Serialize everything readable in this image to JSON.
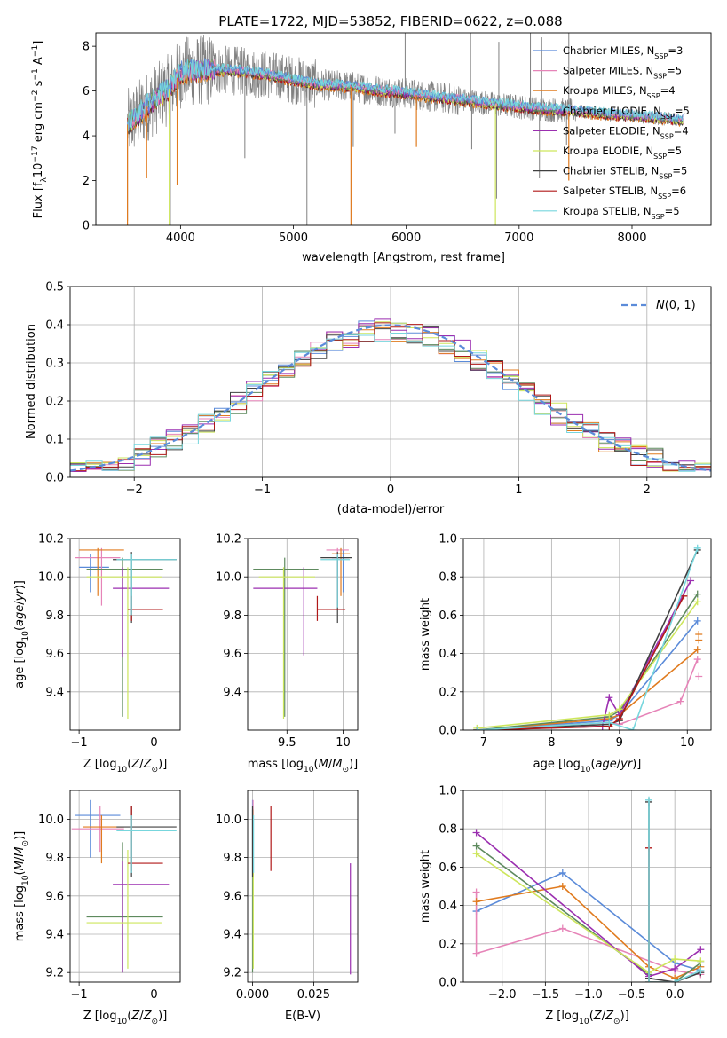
{
  "figure_title": "PLATE=1722, MJD=53852, FIBERID=0622, z=0.088",
  "colors": {
    "chabrier_miles": "#5b8bd9",
    "salpeter_miles": "#e684b8",
    "kroupa_miles": "#e07b1f",
    "chabrier_elodie": "#5e8a5e",
    "salpeter_elodie": "#9b2fb0",
    "kroupa_elodie": "#cde65c",
    "chabrier_stelib": "#404040",
    "salpeter_stelib": "#b01818",
    "kroupa_stelib": "#77d6dd",
    "data_gray": "#808080",
    "normal_dash": "#5b8bd9"
  },
  "chart_data": [
    {
      "id": "spectrum",
      "type": "line",
      "xlabel": "wavelength [Angstrom, rest frame]",
      "ylabel": "Flux [f_λ 10^-17 erg cm^-2 s^-1 A^-1]",
      "xlim": [
        3250,
        8700
      ],
      "ylim": [
        0,
        8.6
      ],
      "xticks": [
        4000,
        5000,
        6000,
        7000,
        8000
      ],
      "yticks": [
        0,
        2,
        4,
        6,
        8
      ],
      "grid": false,
      "legend_position": "top-right",
      "legend": [
        {
          "key": "chabrier_miles",
          "name": "Chabrier MILES",
          "nssp": "N",
          "sub": "SSP",
          "val": "=3"
        },
        {
          "key": "salpeter_miles",
          "name": "Salpeter MILES",
          "nssp": "N",
          "sub": "SSP",
          "val": "=5"
        },
        {
          "key": "kroupa_miles",
          "name": "Kroupa MILES",
          "nssp": "N",
          "sub": "SSP",
          "val": "=4"
        },
        {
          "key": "chabrier_elodie",
          "name": "Chabrier ELODIE",
          "nssp": "N",
          "sub": "SSP",
          "val": "=5"
        },
        {
          "key": "salpeter_elodie",
          "name": "Salpeter ELODIE",
          "nssp": "N",
          "sub": "SSP",
          "val": "=4"
        },
        {
          "key": "kroupa_elodie",
          "name": "Kroupa ELODIE",
          "nssp": "N",
          "sub": "SSP",
          "val": "=5"
        },
        {
          "key": "chabrier_stelib",
          "name": "Chabrier STELIB",
          "nssp": "N",
          "sub": "SSP",
          "val": "=5"
        },
        {
          "key": "salpeter_stelib",
          "name": "Salpeter STELIB",
          "nssp": "N",
          "sub": "SSP",
          "val": "=6"
        },
        {
          "key": "kroupa_stelib",
          "name": "Kroupa STELIB",
          "nssp": "N",
          "sub": "SSP",
          "val": "=5"
        }
      ],
      "continuum": {
        "x": [
          3530,
          3620,
          3700,
          3800,
          3900,
          4000,
          4100,
          4300,
          4500,
          4800,
          5000,
          5200,
          5500,
          5800,
          6000,
          6300,
          6500,
          6800,
          7000,
          7200,
          7500,
          7800,
          8000,
          8200,
          8450
        ],
        "y": [
          4.5,
          4.9,
          5.3,
          5.7,
          6.1,
          6.8,
          6.9,
          6.95,
          6.9,
          6.7,
          6.5,
          6.3,
          6.2,
          6.0,
          5.9,
          5.7,
          5.6,
          5.4,
          5.3,
          5.2,
          5.1,
          4.95,
          4.9,
          4.8,
          4.7
        ]
      },
      "data_dips": [
        {
          "x": 3530,
          "y": 0.2
        },
        {
          "x": 3910,
          "y": 0.0
        },
        {
          "x": 4570,
          "y": 3.0
        },
        {
          "x": 5120,
          "y": 0.0
        },
        {
          "x": 5530,
          "y": 3.5
        },
        {
          "x": 5900,
          "y": 4.1
        },
        {
          "x": 6580,
          "y": 3.4
        },
        {
          "x": 6800,
          "y": 1.2
        },
        {
          "x": 7180,
          "y": 2.1
        },
        {
          "x": 7420,
          "y": 3.6
        }
      ],
      "data_spikes": [
        {
          "x": 5990,
          "y": 8.6
        },
        {
          "x": 6570,
          "y": 8.6
        },
        {
          "x": 6820,
          "y": 8.2
        },
        {
          "x": 7100,
          "y": 8.6
        },
        {
          "x": 7200,
          "y": 8.4
        },
        {
          "x": 7440,
          "y": 8.6
        }
      ],
      "model_dips": [
        {
          "key": "kroupa_miles",
          "x": 3530,
          "y": 0.0
        },
        {
          "key": "kroupa_miles",
          "x": 3700,
          "y": 2.1
        },
        {
          "key": "kroupa_miles",
          "x": 3970,
          "y": 1.8
        },
        {
          "key": "kroupa_miles",
          "x": 5510,
          "y": 0.0
        },
        {
          "key": "kroupa_miles",
          "x": 6090,
          "y": 3.5
        },
        {
          "key": "kroupa_miles",
          "x": 7440,
          "y": 2.0
        },
        {
          "key": "kroupa_elodie",
          "x": 3900,
          "y": 0.0
        },
        {
          "key": "kroupa_elodie",
          "x": 6790,
          "y": 0.0
        }
      ]
    },
    {
      "id": "residuals",
      "type": "step",
      "xlabel": "(data-model)/error",
      "ylabel": "Normed distribution",
      "xlim": [
        -2.5,
        2.5
      ],
      "ylim": [
        0,
        0.5
      ],
      "xticks": [
        -2,
        -1,
        0,
        1,
        2
      ],
      "yticks": [
        0.0,
        0.1,
        0.2,
        0.3,
        0.4,
        0.5
      ],
      "grid": true,
      "legend_position": "top-right",
      "normal_label": "N(0,1)"
    },
    {
      "id": "age_vs_Z",
      "type": "errorbar",
      "xlabel": "Z [log10(Z/Z_sun)]",
      "ylabel": "age [log10(age/yr)]",
      "xlim": [
        -1.12,
        0.35
      ],
      "ylim": [
        9.2,
        10.2
      ],
      "xticks": [
        -1,
        0
      ],
      "yticks": [
        9.4,
        9.6,
        9.8,
        10.0,
        10.2
      ],
      "grid": true,
      "points": [
        {
          "key": "chabrier_miles",
          "x": -0.85,
          "x_lo": -1.0,
          "x_hi": -0.6,
          "y": 10.05,
          "y_lo": 9.92,
          "y_hi": 10.12
        },
        {
          "key": "salpeter_miles",
          "x": -0.7,
          "x_lo": -1.05,
          "x_hi": -0.45,
          "y": 10.1,
          "y_lo": 9.85,
          "y_hi": 10.15
        },
        {
          "key": "kroupa_miles",
          "x": -0.75,
          "x_lo": -1.0,
          "x_hi": -0.4,
          "y": 10.14,
          "y_lo": 9.9,
          "y_hi": 10.15
        },
        {
          "key": "chabrier_elodie",
          "x": -0.42,
          "x_lo": -0.9,
          "x_hi": 0.12,
          "y": 10.04,
          "y_lo": 9.27,
          "y_hi": 10.1
        },
        {
          "key": "salpeter_elodie",
          "x": -0.42,
          "x_lo": -0.55,
          "x_hi": 0.2,
          "y": 9.94,
          "y_lo": 9.58,
          "y_hi": 10.05
        },
        {
          "key": "kroupa_elodie",
          "x": -0.35,
          "x_lo": -0.9,
          "x_hi": 0.1,
          "y": 10.0,
          "y_lo": 9.26,
          "y_hi": 10.05
        },
        {
          "key": "chabrier_stelib",
          "x": -0.3,
          "x_lo": -0.55,
          "x_hi": 0.3,
          "y": 10.09,
          "y_lo": 9.76,
          "y_hi": 10.13
        },
        {
          "key": "salpeter_stelib",
          "x": -0.3,
          "x_lo": -0.35,
          "x_hi": 0.12,
          "y": 9.83,
          "y_lo": 9.77,
          "y_hi": 9.9
        },
        {
          "key": "kroupa_stelib",
          "x": -0.3,
          "x_lo": -0.5,
          "x_hi": 0.3,
          "y": 10.09,
          "y_lo": 9.8,
          "y_hi": 10.12
        }
      ]
    },
    {
      "id": "age_vs_mass",
      "type": "errorbar",
      "xlabel": "mass [log10(M/M_sun)]",
      "ylabel": "",
      "xlim": [
        9.15,
        10.13
      ],
      "ylim": [
        9.2,
        10.2
      ],
      "xticks": [
        9.5,
        10.0
      ],
      "yticks": [
        9.4,
        9.6,
        9.8,
        10.0,
        10.2
      ],
      "grid": true,
      "points": [
        {
          "key": "chabrier_miles",
          "x": 10.0,
          "x_lo": 9.9,
          "x_hi": 10.05,
          "y": 10.1,
          "y_lo": 9.92,
          "y_hi": 10.14
        },
        {
          "key": "salpeter_miles",
          "x": 9.95,
          "x_lo": 9.85,
          "x_hi": 10.05,
          "y": 10.14,
          "y_lo": 9.85,
          "y_hi": 10.15
        },
        {
          "key": "kroupa_miles",
          "x": 9.98,
          "x_lo": 9.9,
          "x_hi": 10.06,
          "y": 10.12,
          "y_lo": 9.9,
          "y_hi": 10.15
        },
        {
          "key": "chabrier_elodie",
          "x": 9.48,
          "x_lo": 9.2,
          "x_hi": 9.78,
          "y": 10.04,
          "y_lo": 9.27,
          "y_hi": 10.1
        },
        {
          "key": "salpeter_elodie",
          "x": 9.65,
          "x_lo": 9.2,
          "x_hi": 9.77,
          "y": 9.94,
          "y_lo": 9.59,
          "y_hi": 10.05
        },
        {
          "key": "kroupa_elodie",
          "x": 9.47,
          "x_lo": 9.25,
          "x_hi": 9.75,
          "y": 10.0,
          "y_lo": 9.26,
          "y_hi": 10.05
        },
        {
          "key": "chabrier_stelib",
          "x": 9.95,
          "x_lo": 9.8,
          "x_hi": 10.08,
          "y": 10.1,
          "y_lo": 9.76,
          "y_hi": 10.13
        },
        {
          "key": "salpeter_stelib",
          "x": 9.77,
          "x_lo": 9.77,
          "x_hi": 10.02,
          "y": 9.83,
          "y_lo": 9.77,
          "y_hi": 9.9
        },
        {
          "key": "kroupa_stelib",
          "x": 9.95,
          "x_lo": 9.8,
          "x_hi": 10.06,
          "y": 10.09,
          "y_lo": 9.84,
          "y_hi": 10.12
        }
      ]
    },
    {
      "id": "weight_vs_age",
      "type": "line",
      "xlabel": "age [log10(age/yr)]",
      "ylabel": "mass weight",
      "xlim": [
        6.7,
        10.35
      ],
      "ylim": [
        0,
        1.0
      ],
      "xticks": [
        7,
        8,
        9,
        10
      ],
      "yticks": [
        0.0,
        0.2,
        0.4,
        0.6,
        0.8,
        1.0
      ],
      "grid": true,
      "series": [
        {
          "key": "chabrier_miles",
          "x": [
            6.9,
            8.85,
            9.0,
            10.15
          ],
          "y": [
            0.0,
            0.05,
            0.08,
            0.57
          ]
        },
        {
          "key": "salpeter_miles",
          "x": [
            6.9,
            8.85,
            9.0,
            9.9,
            10.15
          ],
          "y": [
            0.0,
            0.04,
            0.03,
            0.15,
            0.37
          ]
        },
        {
          "key": "kroupa_miles",
          "x": [
            6.9,
            8.85,
            9.0,
            10.15
          ],
          "y": [
            0.0,
            0.06,
            0.08,
            0.42
          ]
        },
        {
          "key": "chabrier_elodie",
          "x": [
            6.9,
            8.85,
            9.0,
            10.15
          ],
          "y": [
            0.0,
            0.07,
            0.1,
            0.71
          ]
        },
        {
          "key": "salpeter_elodie",
          "x": [
            6.9,
            8.75,
            8.85,
            9.0,
            10.05
          ],
          "y": [
            0.0,
            0.02,
            0.17,
            0.08,
            0.78
          ]
        },
        {
          "key": "kroupa_elodie",
          "x": [
            6.9,
            8.85,
            9.0,
            10.15
          ],
          "y": [
            0.01,
            0.08,
            0.11,
            0.67
          ]
        },
        {
          "key": "chabrier_stelib",
          "x": [
            6.9,
            8.85,
            9.0,
            10.15
          ],
          "y": [
            0.0,
            0.03,
            0.05,
            0.94
          ]
        },
        {
          "key": "salpeter_stelib",
          "x": [
            6.9,
            8.85,
            9.0,
            9.95
          ],
          "y": [
            0.0,
            0.02,
            0.06,
            0.7
          ]
        },
        {
          "key": "kroupa_stelib",
          "x": [
            6.9,
            8.85,
            9.2,
            10.15
          ],
          "y": [
            0.0,
            0.04,
            0.0,
            0.95
          ]
        }
      ],
      "extra_markers": [
        {
          "key": "kroupa_miles",
          "x": 10.17,
          "y": 0.5
        },
        {
          "key": "kroupa_miles",
          "x": 10.17,
          "y": 0.47
        },
        {
          "key": "salpeter_miles",
          "x": 10.17,
          "y": 0.28
        }
      ]
    },
    {
      "id": "mass_vs_Z",
      "type": "errorbar",
      "xlabel": "Z [log10(Z/Z_sun)]",
      "ylabel": "mass [log10(M/M_sun)]",
      "xlim": [
        -1.12,
        0.35
      ],
      "ylim": [
        9.15,
        10.15
      ],
      "xticks": [
        -1,
        0
      ],
      "yticks": [
        9.2,
        9.4,
        9.6,
        9.8,
        10.0
      ],
      "grid": true,
      "points": [
        {
          "key": "chabrier_miles",
          "x": -0.85,
          "x_lo": -1.05,
          "x_hi": -0.45,
          "y": 10.02,
          "y_lo": 9.8,
          "y_hi": 10.1
        },
        {
          "key": "salpeter_miles",
          "x": -0.72,
          "x_lo": -1.1,
          "x_hi": -0.4,
          "y": 9.95,
          "y_lo": 9.83,
          "y_hi": 10.07
        },
        {
          "key": "kroupa_miles",
          "x": -0.7,
          "x_lo": -0.95,
          "x_hi": -0.4,
          "y": 9.96,
          "y_lo": 9.77,
          "y_hi": 10.02
        },
        {
          "key": "chabrier_elodie",
          "x": -0.42,
          "x_lo": -0.9,
          "x_hi": 0.12,
          "y": 9.49,
          "y_lo": 9.2,
          "y_hi": 9.88
        },
        {
          "key": "salpeter_elodie",
          "x": -0.42,
          "x_lo": -0.55,
          "x_hi": 0.2,
          "y": 9.66,
          "y_lo": 9.2,
          "y_hi": 9.78
        },
        {
          "key": "kroupa_elodie",
          "x": -0.35,
          "x_lo": -0.9,
          "x_hi": 0.1,
          "y": 9.46,
          "y_lo": 9.22,
          "y_hi": 9.84
        },
        {
          "key": "chabrier_stelib",
          "x": -0.3,
          "x_lo": -0.5,
          "x_hi": 0.3,
          "y": 9.96,
          "y_lo": 9.7,
          "y_hi": 10.07
        },
        {
          "key": "salpeter_stelib",
          "x": -0.3,
          "x_lo": -0.35,
          "x_hi": 0.12,
          "y": 9.77,
          "y_lo": 9.73,
          "y_hi": 10.07
        },
        {
          "key": "kroupa_stelib",
          "x": -0.3,
          "x_lo": -0.5,
          "x_hi": 0.3,
          "y": 9.94,
          "y_lo": 9.72,
          "y_hi": 10.02
        }
      ]
    },
    {
      "id": "mass_vs_ebv",
      "type": "errorbar",
      "xlabel": "E(B-V)",
      "ylabel": "",
      "xlim": [
        -0.002,
        0.043
      ],
      "ylim": [
        9.15,
        10.15
      ],
      "xticks": [
        0.0,
        0.025
      ],
      "xtick_labels": [
        "0.000",
        "0.025"
      ],
      "yticks": [
        9.2,
        9.4,
        9.6,
        9.8,
        10.0
      ],
      "grid": true,
      "points": [
        {
          "key": "chabrier_miles",
          "x": 0.0,
          "y_lo": 9.8,
          "y_hi": 10.1
        },
        {
          "key": "salpeter_miles",
          "x": 0.0002,
          "y_lo": 9.83,
          "y_hi": 10.1
        },
        {
          "key": "kroupa_miles",
          "x": 0.0001,
          "y_lo": 9.77,
          "y_hi": 10.05
        },
        {
          "key": "chabrier_elodie",
          "x": 0.0,
          "y_lo": 9.2,
          "y_hi": 10.05
        },
        {
          "key": "salpeter_elodie",
          "x": 0.04,
          "y_lo": 9.19,
          "y_hi": 9.77
        },
        {
          "key": "kroupa_elodie",
          "x": 0.0003,
          "y_lo": 9.22,
          "y_hi": 9.84
        },
        {
          "key": "chabrier_stelib",
          "x": 0.0,
          "y_lo": 9.7,
          "y_hi": 10.07
        },
        {
          "key": "salpeter_stelib",
          "x": 0.0075,
          "y_lo": 9.73,
          "y_hi": 10.07
        },
        {
          "key": "kroupa_stelib",
          "x": 0.0004,
          "y_lo": 9.72,
          "y_hi": 10.02
        }
      ]
    },
    {
      "id": "weight_vs_Z",
      "type": "line",
      "xlabel": "Z [log10(Z/Z_sun)]",
      "ylabel": "mass weight",
      "xlim": [
        -2.45,
        0.42
      ],
      "ylim": [
        0,
        1.0
      ],
      "xticks": [
        -2.0,
        -1.5,
        -1.0,
        -0.5,
        0.0
      ],
      "xtick_labels": [
        "−2.0",
        "−1.5",
        "−1.0",
        "−0.5",
        "0.0"
      ],
      "yticks": [
        0.0,
        0.2,
        0.4,
        0.6,
        0.8,
        1.0
      ],
      "grid": true,
      "series": [
        {
          "key": "chabrier_miles",
          "x": [
            -2.3,
            -1.3,
            0.0,
            0.3
          ],
          "y": [
            0.37,
            0.57,
            0.1,
            0.06
          ]
        },
        {
          "key": "salpeter_miles",
          "x": [
            -2.3,
            -2.3,
            -1.3,
            0.0,
            0.3
          ],
          "y": [
            0.47,
            0.15,
            0.28,
            0.06,
            0.04
          ]
        },
        {
          "key": "kroupa_miles",
          "x": [
            -2.3,
            -1.3,
            -0.3,
            0.0,
            0.3
          ],
          "y": [
            0.42,
            0.5,
            0.08,
            0.02,
            0.08
          ]
        },
        {
          "key": "chabrier_elodie",
          "x": [
            -2.3,
            -0.3,
            -0.3,
            0.0,
            0.3
          ],
          "y": [
            0.71,
            0.04,
            0.0,
            0.0,
            0.1
          ]
        },
        {
          "key": "salpeter_elodie",
          "x": [
            -2.3,
            -0.3,
            0.0,
            0.3
          ],
          "y": [
            0.78,
            0.03,
            0.07,
            0.17
          ]
        },
        {
          "key": "kroupa_elodie",
          "x": [
            -2.3,
            -0.3,
            0.0,
            0.3
          ],
          "y": [
            0.67,
            0.05,
            0.12,
            0.11
          ]
        },
        {
          "key": "chabrier_stelib",
          "x": [
            -0.3,
            -0.3,
            0.0,
            0.3
          ],
          "y": [
            0.94,
            0.02,
            0.0,
            0.05
          ]
        },
        {
          "key": "salpeter_stelib",
          "x": [
            -0.3,
            -0.3,
            0.0
          ],
          "y": [
            0.7,
            0.0,
            0.0
          ]
        },
        {
          "key": "kroupa_stelib",
          "x": [
            -0.3,
            -0.3,
            0.0,
            0.3
          ],
          "y": [
            0.95,
            0.0,
            0.0,
            0.06
          ]
        }
      ]
    }
  ]
}
